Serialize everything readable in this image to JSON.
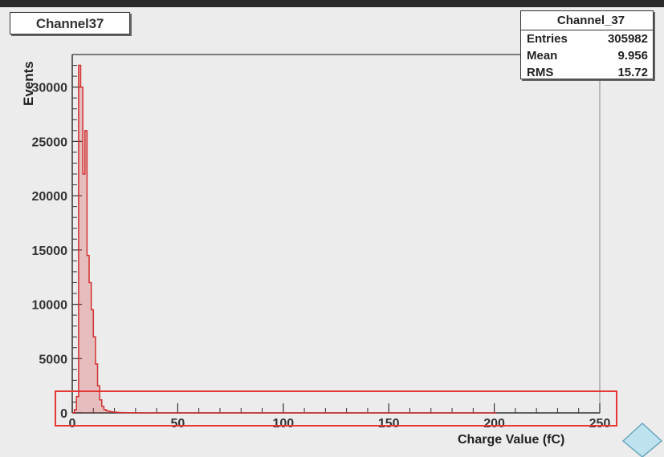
{
  "chart_data": {
    "type": "bar",
    "title": "Channel37",
    "xlabel": "Charge Value (fC)",
    "ylabel": "Events",
    "xlim": [
      0,
      250
    ],
    "ylim": [
      0,
      33000
    ],
    "x_ticks": [
      0,
      50,
      100,
      150,
      200,
      250
    ],
    "y_ticks": [
      0,
      5000,
      10000,
      15000,
      20000,
      25000,
      30000
    ],
    "x_tick_labels": [
      "0",
      "50",
      "100",
      "150",
      "200",
      "250"
    ],
    "y_tick_labels": [
      "0",
      "5000",
      "10000",
      "15000",
      "20000",
      "25000",
      "30000"
    ],
    "grid": false,
    "legend": "none",
    "bin_width": 1,
    "x": [
      0,
      1,
      2,
      3,
      4,
      5,
      6,
      7,
      8,
      9,
      10,
      11,
      12,
      13,
      14,
      15,
      16,
      17,
      18,
      19,
      20,
      21,
      22,
      23,
      24,
      25,
      26,
      27,
      28,
      29,
      30,
      35,
      40,
      50,
      100,
      200
    ],
    "values": [
      0,
      300,
      1500,
      32000,
      30000,
      22000,
      26000,
      14500,
      12000,
      9500,
      7000,
      4500,
      2500,
      1200,
      600,
      300,
      200,
      150,
      100,
      80,
      60,
      50,
      40,
      30,
      25,
      20,
      15,
      12,
      10,
      8,
      6,
      4,
      3,
      2,
      1,
      0
    ],
    "stats": {
      "name": "Channel_37",
      "rows": [
        {
          "label": "Entries",
          "value": "305982"
        },
        {
          "label": "Mean",
          "value": "9.956"
        },
        {
          "label": "RMS",
          "value": "15.72"
        }
      ]
    },
    "colors": {
      "histogram": "#d23030",
      "axis": "#333333",
      "frame": "#888888",
      "highlight_box": "#e53935",
      "background": "#ececec"
    }
  }
}
